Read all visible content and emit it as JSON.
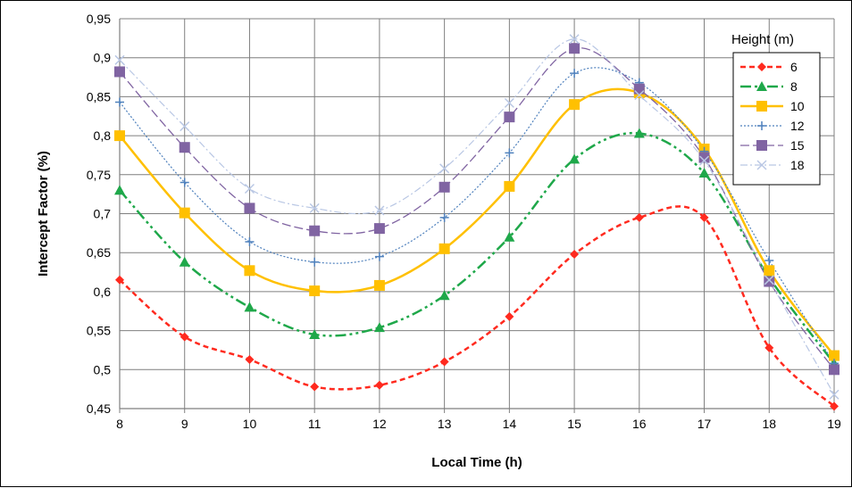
{
  "chart_data": {
    "type": "line",
    "title": "",
    "xlabel": "Local Time (h)",
    "ylabel": "Intercept Factor (%)",
    "xlim": [
      8,
      19
    ],
    "ylim": [
      0.45,
      0.95
    ],
    "x": [
      8,
      9,
      10,
      11,
      12,
      13,
      14,
      15,
      16,
      17,
      18,
      19
    ],
    "x_tick_labels": [
      "8",
      "9",
      "10",
      "11",
      "12",
      "13",
      "14",
      "15",
      "16",
      "17",
      "18",
      "19"
    ],
    "y_ticks": [
      0.45,
      0.5,
      0.55,
      0.6,
      0.65,
      0.7,
      0.75,
      0.8,
      0.85,
      0.9,
      0.95
    ],
    "y_tick_labels": [
      "0,45",
      "0,5",
      "0,55",
      "0,6",
      "0,65",
      "0,7",
      "0,75",
      "0,8",
      "0,85",
      "0,9",
      "0,95"
    ],
    "grid": true,
    "legend_title": "Height (m)",
    "legend_position": "top-right",
    "series": [
      {
        "name": "6",
        "color": "#ff2a1f",
        "marker": "diamond",
        "dash": "6,4",
        "width": 2.5,
        "values": [
          0.615,
          0.542,
          0.513,
          0.478,
          0.48,
          0.51,
          0.568,
          0.648,
          0.695,
          0.695,
          0.528,
          0.453
        ]
      },
      {
        "name": "8",
        "color": "#1fa84a",
        "marker": "triangle",
        "dash": "12,4,3,4,3,4",
        "width": 2.5,
        "values": [
          0.73,
          0.638,
          0.58,
          0.545,
          0.554,
          0.595,
          0.67,
          0.77,
          0.803,
          0.752,
          0.618,
          0.508
        ]
      },
      {
        "name": "10",
        "color": "#ffc000",
        "marker": "square",
        "dash": "",
        "width": 2.5,
        "values": [
          0.8,
          0.701,
          0.627,
          0.601,
          0.608,
          0.655,
          0.735,
          0.84,
          0.855,
          0.783,
          0.627,
          0.518
        ]
      },
      {
        "name": "12",
        "color": "#4f81bd",
        "marker": "plus",
        "dash": "2,2",
        "width": 1.2,
        "values": [
          0.843,
          0.74,
          0.664,
          0.638,
          0.645,
          0.695,
          0.778,
          0.88,
          0.868,
          0.78,
          0.64,
          0.508
        ]
      },
      {
        "name": "15",
        "color": "#8064a2",
        "marker": "square",
        "dash": "10,4",
        "width": 1.3,
        "values": [
          0.882,
          0.785,
          0.707,
          0.678,
          0.681,
          0.734,
          0.824,
          0.912,
          0.86,
          0.772,
          0.613,
          0.5
        ]
      },
      {
        "name": "18",
        "color": "#b9c7e4",
        "marker": "x",
        "dash": "8,3,2,3",
        "width": 1.2,
        "values": [
          0.897,
          0.812,
          0.732,
          0.707,
          0.704,
          0.758,
          0.842,
          0.924,
          0.852,
          0.768,
          0.615,
          0.468
        ]
      }
    ]
  }
}
